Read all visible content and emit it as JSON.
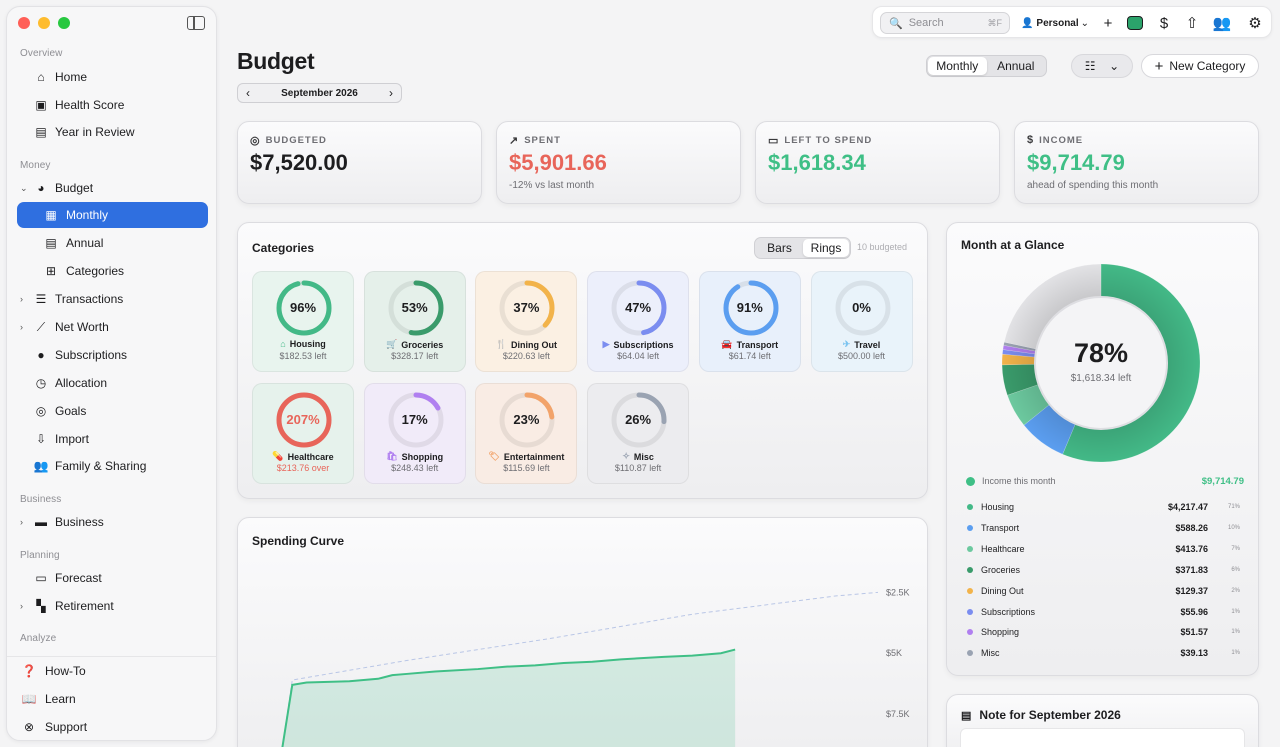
{
  "sidebar": {
    "sections": {
      "overview": "Overview",
      "money": "Money",
      "business": "Business",
      "planning": "Planning",
      "analyze": "Analyze"
    },
    "items": {
      "home": "Home",
      "health_score": "Health Score",
      "year_in_review": "Year in Review",
      "budget": "Budget",
      "monthly": "Monthly",
      "annual": "Annual",
      "categories": "Categories",
      "transactions": "Transactions",
      "net_worth": "Net Worth",
      "subscriptions": "Subscriptions",
      "allocation": "Allocation",
      "goals": "Goals",
      "import": "Import",
      "family_sharing": "Family & Sharing",
      "business": "Business",
      "forecast": "Forecast",
      "retirement": "Retirement",
      "how_to": "How-To",
      "learn": "Learn",
      "support": "Support"
    }
  },
  "toolbar": {
    "search_placeholder": "Search",
    "search_shortcut": "⌘F",
    "profile": "Personal"
  },
  "page": {
    "title": "Budget",
    "month": "September 2026",
    "view_toggle": {
      "monthly": "Monthly",
      "annual": "Annual"
    },
    "new_category": "New Category"
  },
  "stats": {
    "budgeted": {
      "label": "BUDGETED",
      "value": "$7,520.00",
      "color": "#1d1d1f"
    },
    "spent": {
      "label": "SPENT",
      "value": "$5,901.66",
      "sub": "-12% vs last month",
      "color": "#e8655a"
    },
    "left": {
      "label": "LEFT TO SPEND",
      "value": "$1,618.34",
      "color": "#3fbf86"
    },
    "income": {
      "label": "INCOME",
      "value": "$9,714.79",
      "sub": "ahead of spending this month",
      "color": "#3fbf86"
    }
  },
  "categories_panel": {
    "title": "Categories",
    "toggle": {
      "bars": "Bars",
      "rings": "Rings"
    },
    "count": "10 budgeted",
    "items": [
      {
        "name": "Housing",
        "pct": "96%",
        "left": "$182.53 left",
        "progress": 0.96,
        "color": "#43b987",
        "bg": "#e8f4ee",
        "icon": "house"
      },
      {
        "name": "Groceries",
        "pct": "53%",
        "left": "$328.17 left",
        "progress": 0.53,
        "color": "#3a9b6b",
        "bg": "#e5f0ea",
        "icon": "cart"
      },
      {
        "name": "Dining Out",
        "pct": "37%",
        "left": "$220.63 left",
        "progress": 0.37,
        "color": "#f2b34a",
        "bg": "#fbf0e3",
        "icon": "fork"
      },
      {
        "name": "Subscriptions",
        "pct": "47%",
        "left": "$64.04 left",
        "progress": 0.47,
        "color": "#7b8df0",
        "bg": "#eceffb",
        "icon": "play"
      },
      {
        "name": "Transport",
        "pct": "91%",
        "left": "$61.74 left",
        "progress": 0.91,
        "color": "#5b9ef0",
        "bg": "#e8f0fb",
        "icon": "car"
      },
      {
        "name": "Travel",
        "pct": "0%",
        "left": "$500.00 left",
        "progress": 0.0,
        "color": "#7cc4f0",
        "bg": "#e9f3fa",
        "icon": "plane"
      },
      {
        "name": "Healthcare",
        "pct": "207%",
        "left": "$213.76 over",
        "progress": 1.0,
        "color": "#e8655a",
        "bg": "#e6f2ec",
        "icon": "pill",
        "over": true
      },
      {
        "name": "Shopping",
        "pct": "17%",
        "left": "$248.43 left",
        "progress": 0.17,
        "color": "#b07ff0",
        "bg": "#f1ebf9",
        "icon": "bag"
      },
      {
        "name": "Entertainment",
        "pct": "23%",
        "left": "$115.69 left",
        "progress": 0.23,
        "color": "#f2a36a",
        "bg": "#f9ece4",
        "icon": "ticket"
      },
      {
        "name": "Misc",
        "pct": "26%",
        "left": "$110.87 left",
        "progress": 0.26,
        "color": "#9aa3b2",
        "bg": "#ececef",
        "icon": "sparkle"
      }
    ]
  },
  "spending_curve": {
    "title": "Spending Curve",
    "y_ticks": [
      "$7.5K",
      "$5K",
      "$2.5K"
    ]
  },
  "glance": {
    "title": "Month at a Glance",
    "center_pct": "78%",
    "center_sub": "$1,618.34 left",
    "income_label": "Income this month",
    "income_value": "$9,714.79",
    "income_color": "#3fbf86",
    "rows": [
      {
        "name": "Housing",
        "amount": "$4,217.47",
        "pct": "71%",
        "color": "#43b987"
      },
      {
        "name": "Transport",
        "amount": "$588.26",
        "pct": "10%",
        "color": "#5b9ef0"
      },
      {
        "name": "Healthcare",
        "amount": "$413.76",
        "pct": "7%",
        "color": "#6cc99f"
      },
      {
        "name": "Groceries",
        "amount": "$371.83",
        "pct": "6%",
        "color": "#3a9b6b"
      },
      {
        "name": "Dining Out",
        "amount": "$129.37",
        "pct": "2%",
        "color": "#f2b34a"
      },
      {
        "name": "Subscriptions",
        "amount": "$55.96",
        "pct": "1%",
        "color": "#7b8df0"
      },
      {
        "name": "Shopping",
        "amount": "$51.57",
        "pct": "1%",
        "color": "#b07ff0"
      },
      {
        "name": "Misc",
        "amount": "$39.13",
        "pct": "1%",
        "color": "#9aa3b2"
      }
    ]
  },
  "note": {
    "title": "Note for September 2026"
  },
  "chart_data": {
    "type": "area",
    "title": "Spending Curve",
    "ylim": [
      0,
      8500
    ],
    "y_ticks": [
      2500,
      5000,
      7500
    ],
    "actual": [
      [
        1,
        0
      ],
      [
        2,
        3700
      ],
      [
        3,
        3800
      ],
      [
        6,
        3850
      ],
      [
        8,
        3950
      ],
      [
        9,
        4100
      ],
      [
        10,
        4150
      ],
      [
        12,
        4250
      ],
      [
        15,
        4350
      ],
      [
        17,
        4450
      ],
      [
        19,
        4500
      ],
      [
        21,
        4600
      ],
      [
        23,
        4650
      ],
      [
        25,
        4750
      ],
      [
        28,
        4850
      ],
      [
        30,
        4900
      ],
      [
        32,
        5000
      ],
      [
        33,
        5150
      ]
    ],
    "budget_pace": [
      [
        1,
        0
      ],
      [
        2,
        3900
      ],
      [
        10,
        4700
      ],
      [
        20,
        5600
      ],
      [
        30,
        6600
      ],
      [
        40,
        7350
      ],
      [
        43,
        7500
      ]
    ]
  }
}
